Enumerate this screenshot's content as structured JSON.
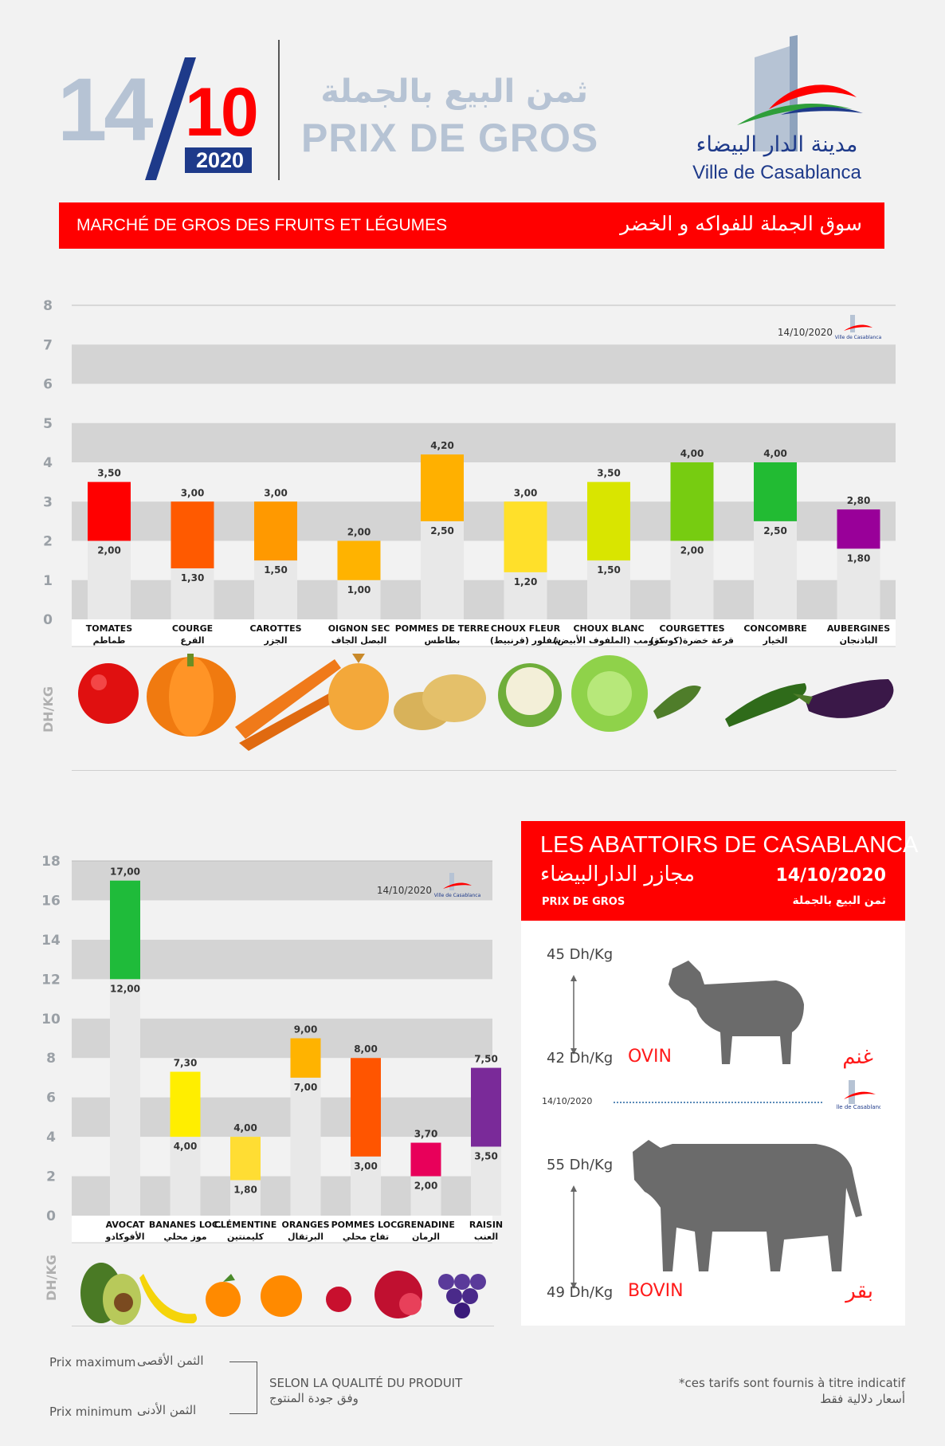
{
  "header": {
    "day": "14",
    "month": "10",
    "year": "2020",
    "title_ar": "ثمن البيع بالجملة",
    "title_fr": "PRIX DE GROS",
    "logo_ar": "مدينة الدار البيضاء",
    "logo_fr": "Ville de Casablanca"
  },
  "market_banner": {
    "fr": "MARCHÉ DE GROS DES FRUITS ET LÉGUMES",
    "ar": "سوق الجملة للفواكه و الخضر"
  },
  "colors": {
    "red": "#ff0000",
    "grey_band": "#d4d4d4",
    "light_bar": "#e8e8e8",
    "title_blue": "#b6c3d4"
  },
  "vegetables": {
    "date": "14/10/2020",
    "unit": "DH/KG",
    "chart_data": {
      "type": "bar",
      "ylim": [
        0,
        8
      ],
      "yticks": [
        0,
        1,
        2,
        3,
        4,
        5,
        6,
        7,
        8
      ],
      "categories": [
        "TOMATES",
        "COURGE",
        "CAROTTES",
        "OIGNON SEC",
        "POMMES DE TERRE",
        "CHOUX FLEUR",
        "CHOUX BLANC",
        "COURGETTES",
        "CONCOMBRE",
        "AUBERGINES"
      ],
      "categories_ar": [
        "طماطم",
        "القرع",
        "الجزر",
        "البصل الجاف",
        "بطاطس",
        "شفلور (قرنبيط)",
        "كرومب (الملفوف الأبيض)",
        "قرعة خضرة(كوسة)",
        "الخيار",
        "الباذنجان"
      ],
      "series": [
        {
          "name": "Prix minimum",
          "values": [
            2.0,
            1.3,
            1.5,
            1.0,
            2.5,
            1.2,
            1.5,
            2.0,
            2.5,
            1.8
          ]
        },
        {
          "name": "Prix maximum",
          "values": [
            3.5,
            3.0,
            3.0,
            2.0,
            4.2,
            3.0,
            3.5,
            4.0,
            4.0,
            2.8
          ]
        }
      ],
      "min_labels": [
        "2,00",
        "1,30",
        "1,50",
        "1,00",
        "2,50",
        "1,20",
        "1,50",
        "2,00",
        "2,50",
        "1,80"
      ],
      "max_labels": [
        "3,50",
        "3,00",
        "3,00",
        "2,00",
        "4,20",
        "3,00",
        "3,50",
        "4,00",
        "4,00",
        "2,80"
      ],
      "bar_colors": [
        "#ff0000",
        "#ff5a00",
        "#ff9900",
        "#ffb300",
        "#ffb000",
        "#ffe02a",
        "#d9e500",
        "#77cc11",
        "#22bb33",
        "#990099"
      ]
    }
  },
  "fruits": {
    "date": "14/10/2020",
    "unit": "DH/KG",
    "chart_data": {
      "type": "bar",
      "ylim": [
        0,
        18
      ],
      "yticks": [
        0,
        2,
        4,
        6,
        8,
        10,
        12,
        14,
        16,
        18
      ],
      "categories": [
        "AVOCAT",
        "BANANES LOC.",
        "CLÉMENTINE",
        "ORANGES",
        "POMMES LOC.",
        "GRENADINE",
        "RAISIN"
      ],
      "categories_ar": [
        "الأفوكادو",
        "موز محلي",
        "كليمنتين",
        "البرتقال",
        "تفاح محلي",
        "الرمان",
        "العنب"
      ],
      "series": [
        {
          "name": "Prix minimum",
          "values": [
            12.0,
            4.0,
            1.8,
            7.0,
            3.0,
            2.0,
            3.5
          ]
        },
        {
          "name": "Prix maximum",
          "values": [
            17.0,
            7.3,
            4.0,
            9.0,
            8.0,
            3.7,
            7.5
          ]
        }
      ],
      "min_labels": [
        "12,00",
        "4,00",
        "1,80",
        "7,00",
        "3,00",
        "2,00",
        "3,50"
      ],
      "max_labels": [
        "17,00",
        "7,30",
        "4,00",
        "9,00",
        "8,00",
        "3,70",
        "7,50"
      ],
      "bar_colors": [
        "#1fbb3a",
        "#ffee00",
        "#ffdd33",
        "#ffb300",
        "#ff5500",
        "#e8005a",
        "#7a2a99"
      ]
    }
  },
  "abattoirs": {
    "title_fr": "LES ABATTOIRS DE CASABLANCA",
    "title_ar": "مجازر الدارالبيضاء",
    "date": "14/10/2020",
    "subtitle_fr": "PRIX DE GROS",
    "subtitle_ar": "ثمن البيع بالجملة",
    "separator_date": "14/10/2020",
    "ovin": {
      "max": "45 Dh/Kg",
      "min": "42 Dh/Kg",
      "name_fr": "OVIN",
      "name_ar": "غنم"
    },
    "bovin": {
      "max": "55 Dh/Kg",
      "min": "49 Dh/Kg",
      "name_fr": "BOVIN",
      "name_ar": "بقر"
    }
  },
  "legend": {
    "max_fr": "Prix maximum",
    "max_ar": "الثمن الأقصى",
    "min_fr": "Prix minimum",
    "min_ar": "الثمن الأدنى",
    "quality_fr": "SELON LA QUALITÉ DU PRODUIT",
    "quality_ar": "وفق جودة المنتوج"
  },
  "footnote": {
    "fr": "*ces tarifs sont fournis à titre indicatif",
    "ar": "أسعار دلالية فقط"
  }
}
